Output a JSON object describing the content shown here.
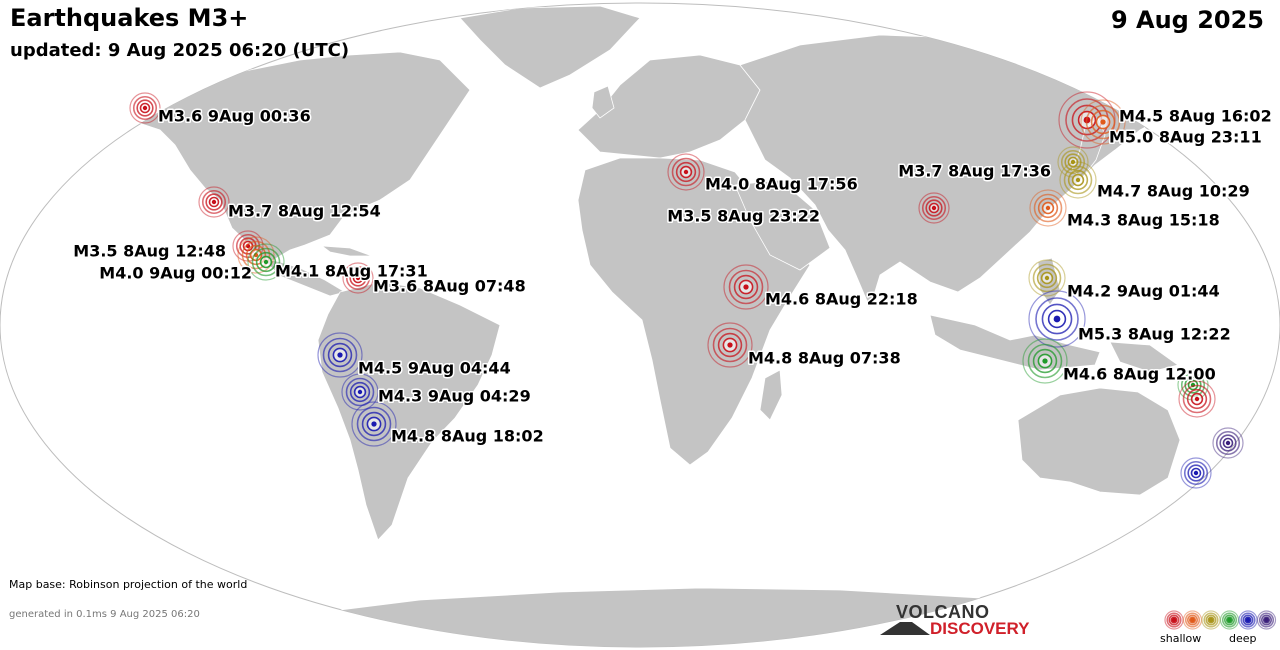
{
  "header": {
    "title": "Earthquakes M3+",
    "updated": "updated:  9 Aug 2025 06:20 (UTC)",
    "date": "9 Aug 2025"
  },
  "depth_colors": {
    "red": "#c8101a",
    "orange": "#e05a1a",
    "olive": "#a89418",
    "green": "#1f9a2a",
    "blue": "#1a1ab0",
    "navy": "#3a1e7a"
  },
  "quakes": [
    {
      "label": "M3.6  9Aug 00:36",
      "color": "red",
      "size": "s"
    },
    {
      "label": "M3.7  8Aug 12:54",
      "color": "red",
      "size": "s"
    },
    {
      "label": "M3.5  8Aug 12:48",
      "color": "red",
      "size": "s"
    },
    {
      "label": "M4.0  9Aug 00:12",
      "color": "orange",
      "size": "m"
    },
    {
      "label": "M4.1  8Aug 17:31",
      "color": "green",
      "size": "m"
    },
    {
      "label": "M3.6  8Aug 07:48",
      "color": "red",
      "size": "s"
    },
    {
      "label": "M4.5  9Aug 04:44",
      "color": "blue",
      "size": "l"
    },
    {
      "label": "M4.3  9Aug 04:29",
      "color": "blue",
      "size": "m"
    },
    {
      "label": "M4.8  8Aug 18:02",
      "color": "blue",
      "size": "l"
    },
    {
      "label": "M4.0  8Aug 17:56",
      "color": "red",
      "size": "m"
    },
    {
      "label": "M4.6  8Aug 22:18",
      "color": "red",
      "size": "l"
    },
    {
      "label": "M4.8  8Aug 07:38",
      "color": "red",
      "size": "l"
    },
    {
      "label": "M3.5  8Aug 23:22",
      "color": "red",
      "size": "s"
    },
    {
      "label": "M4.5  8Aug 16:02",
      "color": "red",
      "size": "xl"
    },
    {
      "label": "M5.0  8Aug 23:11",
      "color": "orange",
      "size": "l"
    },
    {
      "label": "M3.7  8Aug 17:36",
      "color": "olive",
      "size": "s"
    },
    {
      "label": "M4.7  8Aug 10:29",
      "color": "olive",
      "size": "m"
    },
    {
      "label": "M4.3  8Aug 15:18",
      "color": "orange",
      "size": "m"
    },
    {
      "label": "M4.2  9Aug 01:44",
      "color": "olive",
      "size": "m"
    },
    {
      "label": "M5.3  8Aug 12:22",
      "color": "blue",
      "size": "xl"
    },
    {
      "label": "M4.6  8Aug 12:00",
      "color": "green",
      "size": "l"
    },
    {
      "label": "",
      "color": "green",
      "size": "s"
    },
    {
      "label": "",
      "color": "red",
      "size": "m"
    },
    {
      "label": "",
      "color": "navy",
      "size": "s"
    },
    {
      "label": "",
      "color": "blue",
      "size": "s"
    }
  ],
  "footer": {
    "map_note": "Map base: Robinson projection of the world",
    "generated": "generated in 0.1ms  9 Aug 2025 06:20",
    "logo_top": "VOLCANO",
    "logo_bottom": "DISCOVERY",
    "legend_shallow": "shallow",
    "legend_deep": "deep",
    "legend_colors": [
      "red",
      "orange",
      "olive",
      "green",
      "blue",
      "navy"
    ]
  }
}
